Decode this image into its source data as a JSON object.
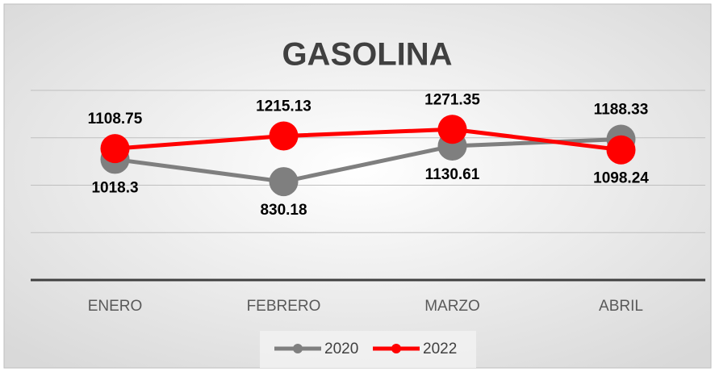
{
  "chart_data": {
    "type": "line",
    "title": "GASOLINA",
    "categories": [
      "ENERO",
      "FEBRERO",
      "MARZO",
      "ABRIL"
    ],
    "series": [
      {
        "name": "2020",
        "color": "#7f7f7f",
        "values": [
          1018.3,
          830.18,
          1130.61,
          1188.33
        ]
      },
      {
        "name": "2022",
        "color": "#ff0000",
        "values": [
          1108.75,
          1215.13,
          1271.35,
          1098.24
        ]
      }
    ],
    "ylim": [
      0,
      1600
    ],
    "yticks": [
      0,
      400,
      800,
      1200,
      1600
    ],
    "grid": true,
    "legend": "bottom"
  }
}
